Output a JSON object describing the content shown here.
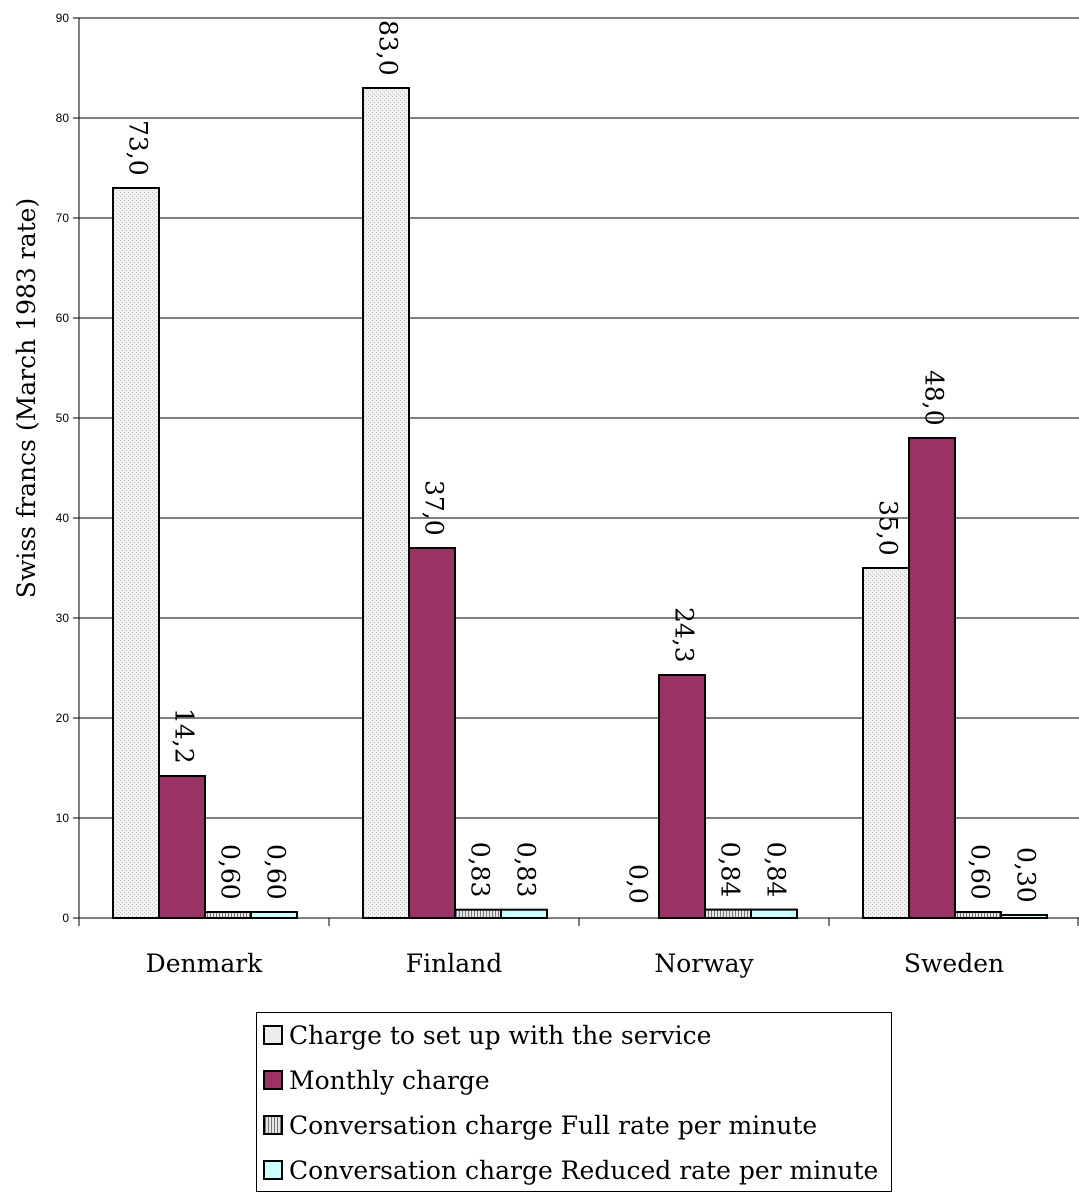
{
  "chart_data": {
    "type": "bar",
    "title": "",
    "xlabel": "",
    "ylabel": "Swiss francs (March 1983 rate)",
    "ylim": [
      0,
      90
    ],
    "y_ticks": [
      "0",
      "10",
      "20",
      "30",
      "40",
      "50",
      "60",
      "70",
      "80",
      "90"
    ],
    "grid": true,
    "legend_position": "bottom",
    "categories": [
      "Denmark",
      "Finland",
      "Norway",
      "Sweden"
    ],
    "series": [
      {
        "name": "Charge to set up with the service",
        "values": [
          73.0,
          83.0,
          0.0,
          35.0
        ],
        "labels": [
          "73,0",
          "83,0",
          "0,0",
          "35,0"
        ],
        "color": "#ececec",
        "pattern": "dotted"
      },
      {
        "name": "Monthly charge",
        "values": [
          14.2,
          37.0,
          24.3,
          48.0
        ],
        "labels": [
          "14,2",
          "37,0",
          "24,3",
          "48,0"
        ],
        "color": "#993366",
        "pattern": "solid"
      },
      {
        "name": "Conversation charge Full rate per minute",
        "values": [
          0.6,
          0.83,
          0.84,
          0.6
        ],
        "labels": [
          "0,60",
          "0,83",
          "0,84",
          "0,60"
        ],
        "color": "#bdbdbd",
        "pattern": "vertical-stripes"
      },
      {
        "name": "Conversation charge Reduced rate per minute",
        "values": [
          0.6,
          0.83,
          0.84,
          0.3
        ],
        "labels": [
          "0,60",
          "0,83",
          "0,84",
          "0,30"
        ],
        "color": "#ccffff",
        "pattern": "solid"
      }
    ]
  }
}
